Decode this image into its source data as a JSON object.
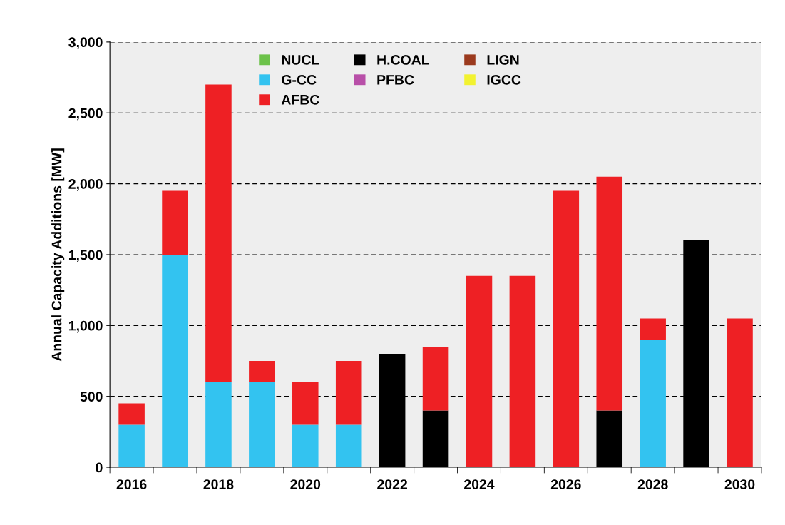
{
  "chart_data": {
    "type": "bar",
    "stacked": true,
    "ylabel": "Annual Capacity Additions [MW]",
    "categories": [
      "2016",
      null,
      "2018",
      null,
      "2020",
      null,
      "2022",
      null,
      "2024",
      null,
      "2026",
      null,
      "2028",
      null,
      "2030"
    ],
    "series": [
      {
        "name": "NUCL",
        "color": "#6cc24a",
        "values": [
          0,
          0,
          0,
          0,
          0,
          0,
          0,
          0,
          0,
          0,
          0,
          0,
          0,
          0,
          0
        ]
      },
      {
        "name": "H.COAL",
        "color": "#000000",
        "values": [
          0,
          0,
          0,
          0,
          0,
          0,
          800,
          400,
          0,
          0,
          0,
          400,
          0,
          1600,
          0
        ]
      },
      {
        "name": "LIGN",
        "color": "#9b3a1e",
        "values": [
          0,
          0,
          0,
          0,
          0,
          0,
          0,
          0,
          0,
          0,
          0,
          0,
          0,
          0,
          0
        ]
      },
      {
        "name": "G-CC",
        "color": "#33c3f0",
        "values": [
          300,
          1500,
          600,
          600,
          300,
          300,
          0,
          0,
          0,
          0,
          0,
          0,
          900,
          0,
          0
        ]
      },
      {
        "name": "PFBC",
        "color": "#b84fa8",
        "values": [
          0,
          0,
          0,
          0,
          0,
          0,
          0,
          0,
          0,
          0,
          0,
          0,
          0,
          0,
          0
        ]
      },
      {
        "name": "IGCC",
        "color": "#f2f230",
        "values": [
          0,
          0,
          0,
          0,
          0,
          0,
          0,
          0,
          0,
          0,
          0,
          0,
          0,
          0,
          0
        ]
      },
      {
        "name": "AFBC",
        "color": "#ee2024",
        "values": [
          150,
          450,
          2100,
          150,
          300,
          450,
          0,
          450,
          1350,
          1350,
          1950,
          1650,
          150,
          0,
          1050
        ]
      }
    ],
    "ylim": [
      0,
      3000
    ],
    "yticks": [
      {
        "value": 0,
        "label": "0"
      },
      {
        "value": 500,
        "label": "500"
      },
      {
        "value": 1000,
        "label": "1,000"
      },
      {
        "value": 1500,
        "label": "1,500"
      },
      {
        "value": 2000,
        "label": "2,000"
      },
      {
        "value": 2500,
        "label": "2,500"
      },
      {
        "value": 3000,
        "label": "3,000"
      }
    ],
    "grid": "y",
    "legend": "top"
  }
}
